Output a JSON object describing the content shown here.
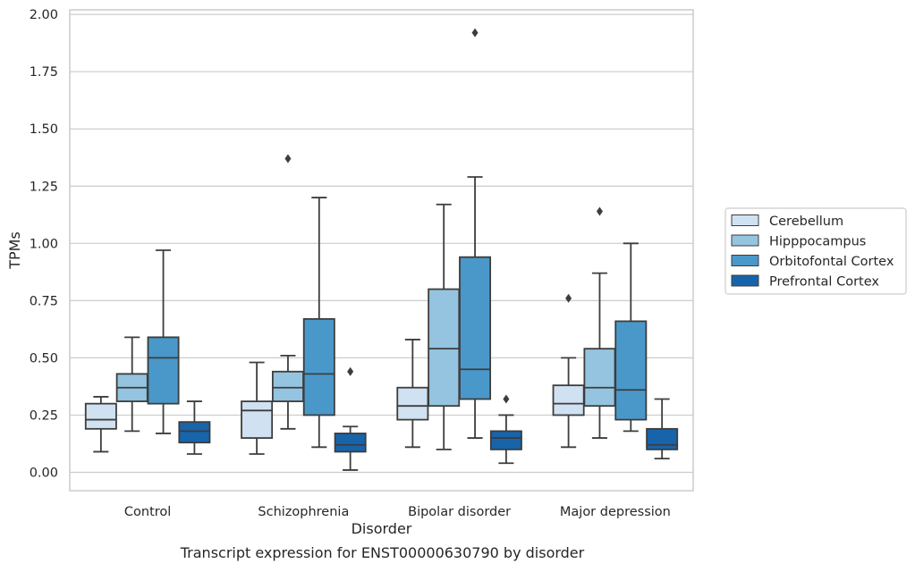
{
  "chart_data": {
    "type": "box",
    "xlabel": "Disorder",
    "ylabel": "TPMs",
    "caption": "Transcript expression for ENST00000630790 by disorder",
    "ylim": [
      -0.08,
      2.02
    ],
    "yticks": [
      "0.00",
      "0.25",
      "0.50",
      "0.75",
      "1.00",
      "1.25",
      "1.50",
      "1.75",
      "2.00"
    ],
    "grid": "horizontal",
    "legend_position": "right",
    "categories": [
      "Control",
      "Schizophrenia",
      "Bipolar disorder",
      "Major depression"
    ],
    "series": [
      {
        "name": "Cerebellum",
        "color": "#d0e1f2",
        "boxes": [
          {
            "whisker_low": 0.09,
            "q1": 0.19,
            "median": 0.23,
            "q3": 0.3,
            "whisker_high": 0.33,
            "outliers": []
          },
          {
            "whisker_low": 0.08,
            "q1": 0.15,
            "median": 0.27,
            "q3": 0.31,
            "whisker_high": 0.48,
            "outliers": []
          },
          {
            "whisker_low": 0.11,
            "q1": 0.23,
            "median": 0.29,
            "q3": 0.37,
            "whisker_high": 0.58,
            "outliers": []
          },
          {
            "whisker_low": 0.11,
            "q1": 0.25,
            "median": 0.3,
            "q3": 0.38,
            "whisker_high": 0.5,
            "outliers": [
              0.76
            ]
          }
        ]
      },
      {
        "name": "Hipppocampus",
        "color": "#94c4df",
        "boxes": [
          {
            "whisker_low": 0.18,
            "q1": 0.31,
            "median": 0.37,
            "q3": 0.43,
            "whisker_high": 0.59,
            "outliers": []
          },
          {
            "whisker_low": 0.19,
            "q1": 0.31,
            "median": 0.37,
            "q3": 0.44,
            "whisker_high": 0.51,
            "outliers": [
              1.37
            ]
          },
          {
            "whisker_low": 0.1,
            "q1": 0.29,
            "median": 0.54,
            "q3": 0.8,
            "whisker_high": 1.17,
            "outliers": []
          },
          {
            "whisker_low": 0.15,
            "q1": 0.29,
            "median": 0.37,
            "q3": 0.54,
            "whisker_high": 0.87,
            "outliers": [
              1.14
            ]
          }
        ]
      },
      {
        "name": "Orbitofontal Cortex",
        "color": "#4a98c9",
        "boxes": [
          {
            "whisker_low": 0.17,
            "q1": 0.3,
            "median": 0.5,
            "q3": 0.59,
            "whisker_high": 0.97,
            "outliers": []
          },
          {
            "whisker_low": 0.11,
            "q1": 0.25,
            "median": 0.43,
            "q3": 0.67,
            "whisker_high": 1.2,
            "outliers": []
          },
          {
            "whisker_low": 0.15,
            "q1": 0.32,
            "median": 0.45,
            "q3": 0.94,
            "whisker_high": 1.29,
            "outliers": [
              1.92
            ]
          },
          {
            "whisker_low": 0.18,
            "q1": 0.23,
            "median": 0.36,
            "q3": 0.66,
            "whisker_high": 1.0,
            "outliers": []
          }
        ]
      },
      {
        "name": "Prefrontal Cortex",
        "color": "#1764ab",
        "boxes": [
          {
            "whisker_low": 0.08,
            "q1": 0.13,
            "median": 0.18,
            "q3": 0.22,
            "whisker_high": 0.31,
            "outliers": []
          },
          {
            "whisker_low": 0.01,
            "q1": 0.09,
            "median": 0.12,
            "q3": 0.17,
            "whisker_high": 0.2,
            "outliers": [
              0.44
            ]
          },
          {
            "whisker_low": 0.04,
            "q1": 0.1,
            "median": 0.15,
            "q3": 0.18,
            "whisker_high": 0.25,
            "outliers": [
              0.32
            ]
          },
          {
            "whisker_low": 0.06,
            "q1": 0.1,
            "median": 0.12,
            "q3": 0.19,
            "whisker_high": 0.32,
            "outliers": []
          }
        ]
      }
    ]
  }
}
